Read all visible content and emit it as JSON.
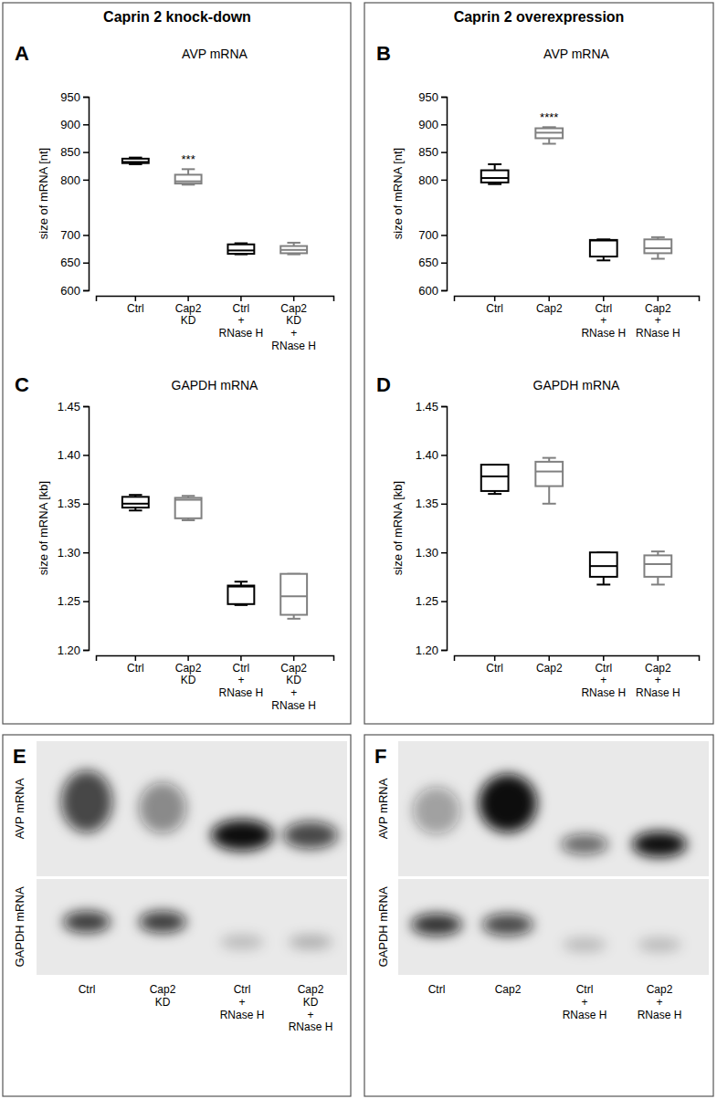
{
  "groups": [
    "Caprin 2 knock-down",
    "Caprin 2 overexpression"
  ],
  "chart_data": [
    {
      "type": "box",
      "label": "A",
      "title": "AVP mRNA",
      "y_label": "size of mRNA [nt]",
      "categories": [
        "Ctrl",
        "Cap2\nKD",
        "Ctrl\n+\nRNase H",
        "Cap2\nKD\n+\nRNase H"
      ],
      "colors": [
        "#000000",
        "#808080",
        "#000000",
        "#808080"
      ],
      "values": [
        {
          "min": 828,
          "q1": 830,
          "median": 832,
          "q3": 838,
          "max": 840
        },
        {
          "min": 791,
          "q1": 793,
          "median": 797,
          "q3": 809,
          "max": 819
        },
        {
          "min": 665,
          "q1": 666,
          "median": 672,
          "q3": 683,
          "max": 685
        },
        {
          "min": 665,
          "q1": 667,
          "median": 673,
          "q3": 680,
          "max": 686
        }
      ],
      "annotations": [
        {
          "text": "***",
          "category": 1
        }
      ],
      "ylim": [
        600,
        950
      ],
      "yticks": [
        600,
        650,
        700,
        800,
        850,
        900,
        950
      ]
    },
    {
      "type": "box",
      "label": "B",
      "title": "AVP mRNA",
      "y_label": "size of mRNA [nt]",
      "categories": [
        "Ctrl",
        "Cap2",
        "Ctrl\n+\nRNase H",
        "Cap2\n+\nRNase H"
      ],
      "colors": [
        "#000000",
        "#808080",
        "#000000",
        "#808080"
      ],
      "values": [
        {
          "min": 792,
          "q1": 795,
          "median": 803,
          "q3": 817,
          "max": 828
        },
        {
          "min": 865,
          "q1": 875,
          "median": 885,
          "q3": 893,
          "max": 895
        },
        {
          "min": 654,
          "q1": 661,
          "median": 690,
          "q3": 691,
          "max": 692
        },
        {
          "min": 657,
          "q1": 667,
          "median": 676,
          "q3": 692,
          "max": 696
        }
      ],
      "annotations": [
        {
          "text": "****",
          "category": 1
        }
      ],
      "ylim": [
        600,
        950
      ],
      "yticks": [
        600,
        650,
        700,
        800,
        850,
        900,
        950
      ]
    },
    {
      "type": "box",
      "label": "C",
      "title": "GAPDH mRNA",
      "y_label": "size of mRNA [kb]",
      "categories": [
        "Ctrl",
        "Cap2\nKD",
        "Ctrl\n+\nRNase H",
        "Cap2\nKD\n+\nRNase H"
      ],
      "colors": [
        "#000000",
        "#808080",
        "#000000",
        "#808080"
      ],
      "values": [
        {
          "min": 1.343,
          "q1": 1.346,
          "median": 1.35,
          "q3": 1.357,
          "max": 1.359
        },
        {
          "min": 1.333,
          "q1": 1.335,
          "median": 1.354,
          "q3": 1.356,
          "max": 1.358
        },
        {
          "min": 1.246,
          "q1": 1.247,
          "median": 1.265,
          "q3": 1.266,
          "max": 1.27
        },
        {
          "min": 1.232,
          "q1": 1.236,
          "median": 1.255,
          "q3": 1.278,
          "max": 1.278
        }
      ],
      "ylim": [
        1.2,
        1.45
      ],
      "yticks": [
        {
          "value": 1.2,
          "label": "1.20"
        },
        {
          "value": 1.25,
          "label": "1.25"
        },
        {
          "value": 1.3,
          "label": "1.30"
        },
        {
          "value": 1.35,
          "label": "1.35"
        },
        {
          "value": 1.4,
          "label": "1.40"
        },
        {
          "value": 1.45,
          "label": "1.45"
        }
      ]
    },
    {
      "type": "box",
      "label": "D",
      "title": "GAPDH mRNA",
      "y_label": "size of mRNA [kb]",
      "categories": [
        "Ctrl",
        "Cap2",
        "Ctrl\n+\nRNase H",
        "Cap2\n+\nRNase H"
      ],
      "colors": [
        "#000000",
        "#808080",
        "#000000",
        "#808080"
      ],
      "values": [
        {
          "min": 1.36,
          "q1": 1.363,
          "median": 1.378,
          "q3": 1.39,
          "max": 1.39
        },
        {
          "min": 1.35,
          "q1": 1.368,
          "median": 1.383,
          "q3": 1.393,
          "max": 1.397
        },
        {
          "min": 1.267,
          "q1": 1.275,
          "median": 1.286,
          "q3": 1.3,
          "max": 1.3
        },
        {
          "min": 1.267,
          "q1": 1.275,
          "median": 1.288,
          "q3": 1.297,
          "max": 1.301
        }
      ],
      "ylim": [
        1.2,
        1.45
      ],
      "yticks": [
        {
          "value": 1.2,
          "label": "1.20"
        },
        {
          "value": 1.25,
          "label": "1.25"
        },
        {
          "value": 1.3,
          "label": "1.30"
        },
        {
          "value": 1.35,
          "label": "1.35"
        },
        {
          "value": 1.4,
          "label": "1.40"
        },
        {
          "value": 1.45,
          "label": "1.45"
        }
      ]
    }
  ],
  "blots": [
    {
      "label": "E",
      "rows": [
        "AVP mRNA",
        "GAPDH mRNA"
      ],
      "categories": [
        "Ctrl",
        "Cap2\nKD",
        "Ctrl\n+\nRNase H",
        "Cap2\nKD\n+\nRNase H"
      ]
    },
    {
      "label": "F",
      "rows": [
        "AVP mRNA",
        "GAPDH mRNA"
      ],
      "categories": [
        "Ctrl",
        "Cap2",
        "Ctrl\n+\nRNase H",
        "Cap2\n+\nRNase H"
      ]
    }
  ]
}
